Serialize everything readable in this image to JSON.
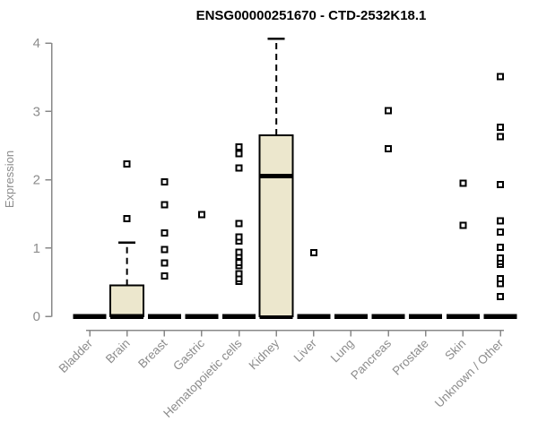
{
  "title": "ENSG00000251670 - CTD-2532K18.1",
  "chart_data": {
    "type": "boxplot",
    "title": "ENSG00000251670 - CTD-2532K18.1",
    "xlabel": "",
    "ylabel": "Expression",
    "ylim": [
      0,
      4
    ],
    "yticks": [
      0,
      1,
      2,
      3,
      4
    ],
    "grid": false,
    "legend": false,
    "categories": [
      "Bladder",
      "Brain",
      "Breast",
      "Gastric",
      "Hematopoietic cells",
      "Kidney",
      "Liver",
      "Lung",
      "Pancreas",
      "Prostate",
      "Skin",
      "Unknown / Other"
    ],
    "series": [
      {
        "name": "Bladder",
        "q1": 0,
        "median": 0,
        "q3": 0,
        "whisker_low": 0,
        "whisker_high": 0,
        "outliers": []
      },
      {
        "name": "Brain",
        "q1": 0,
        "median": 0,
        "q3": 0.45,
        "whisker_low": 0,
        "whisker_high": 1.08,
        "outliers": [
          1.43,
          2.23
        ]
      },
      {
        "name": "Breast",
        "q1": 0,
        "median": 0,
        "q3": 0,
        "whisker_low": 0,
        "whisker_high": 0,
        "outliers": [
          0.59,
          0.78,
          0.98,
          1.22,
          1.63,
          1.97
        ]
      },
      {
        "name": "Gastric",
        "q1": 0,
        "median": 0,
        "q3": 0,
        "whisker_low": 0,
        "whisker_high": 0,
        "outliers": [
          1.49
        ]
      },
      {
        "name": "Hematopoietic cells",
        "q1": 0,
        "median": 0,
        "q3": 0,
        "whisker_low": 0,
        "whisker_high": 0,
        "outliers": [
          0.51,
          0.55,
          0.62,
          0.74,
          0.79,
          0.88,
          0.94,
          1.1,
          1.16,
          1.36,
          2.17,
          2.38,
          2.48
        ]
      },
      {
        "name": "Kidney",
        "q1": 0,
        "median": 2.05,
        "q3": 2.65,
        "whisker_low": 0,
        "whisker_high": 4.06,
        "outliers": []
      },
      {
        "name": "Liver",
        "q1": 0,
        "median": 0,
        "q3": 0,
        "whisker_low": 0,
        "whisker_high": 0,
        "outliers": [
          0.93
        ]
      },
      {
        "name": "Lung",
        "q1": 0,
        "median": 0,
        "q3": 0,
        "whisker_low": 0,
        "whisker_high": 0,
        "outliers": []
      },
      {
        "name": "Pancreas",
        "q1": 0,
        "median": 0,
        "q3": 0,
        "whisker_low": 0,
        "whisker_high": 0,
        "outliers": [
          2.45,
          3.01
        ]
      },
      {
        "name": "Prostate",
        "q1": 0,
        "median": 0,
        "q3": 0,
        "whisker_low": 0,
        "whisker_high": 0,
        "outliers": []
      },
      {
        "name": "Skin",
        "q1": 0,
        "median": 0,
        "q3": 0,
        "whisker_low": 0,
        "whisker_high": 0,
        "outliers": [
          1.33,
          1.95
        ]
      },
      {
        "name": "Unknown / Other",
        "q1": 0,
        "median": 0,
        "q3": 0,
        "whisker_low": 0,
        "whisker_high": 0,
        "outliers": [
          0.29,
          0.48,
          0.55,
          0.76,
          0.8,
          0.85,
          1.01,
          1.23,
          1.4,
          1.93,
          2.63,
          2.77,
          3.51
        ]
      }
    ]
  },
  "colors": {
    "background": "#ffffff",
    "box_fill": "#ece7cd",
    "box_border": "#000000",
    "median": "#000000",
    "whisker": "#000000",
    "outlier_fill": "#ffffff",
    "outlier_border": "#000000",
    "axis": "#888888",
    "label_text": "#8c8c8c",
    "title_text": "#000000"
  }
}
